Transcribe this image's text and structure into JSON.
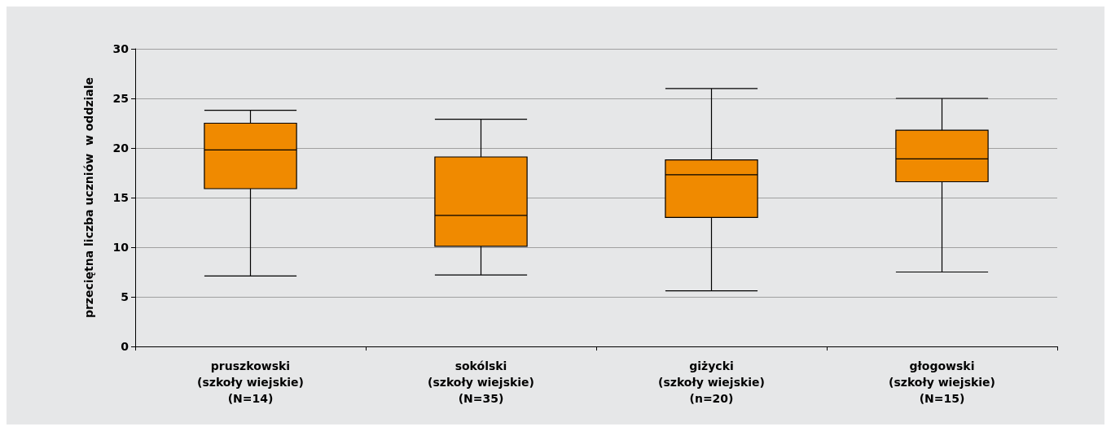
{
  "chart_data": {
    "type": "box",
    "ylabel": "przeciętna liczba uczniów  w oddziale",
    "categories": [
      "pruszkowski\n(szkoły wiejskie)\n(N=14)",
      "sokólski\n(szkoły wiejskie)\n(N=35)",
      "giżycki\n(szkoły wiejskie)\n(n=20)",
      "głogowski\n(szkoły wiejskie)\n(N=15)"
    ],
    "series": [
      {
        "color": "#f08a00",
        "boxes": [
          {
            "low": 7.1,
            "q1": 15.9,
            "median": 19.8,
            "q3": 22.5,
            "high": 23.8
          },
          {
            "low": 7.2,
            "q1": 10.1,
            "median": 13.2,
            "q3": 19.1,
            "high": 22.9
          },
          {
            "low": 5.6,
            "q1": 13.0,
            "median": 17.3,
            "q3": 18.8,
            "high": 26.0
          },
          {
            "low": 7.5,
            "q1": 16.6,
            "median": 18.9,
            "q3": 21.8,
            "high": 25.0
          }
        ]
      }
    ],
    "ylim": [
      0,
      30
    ],
    "yticks": [
      0,
      5,
      10,
      15,
      20,
      25,
      30
    ],
    "grid": "y"
  }
}
